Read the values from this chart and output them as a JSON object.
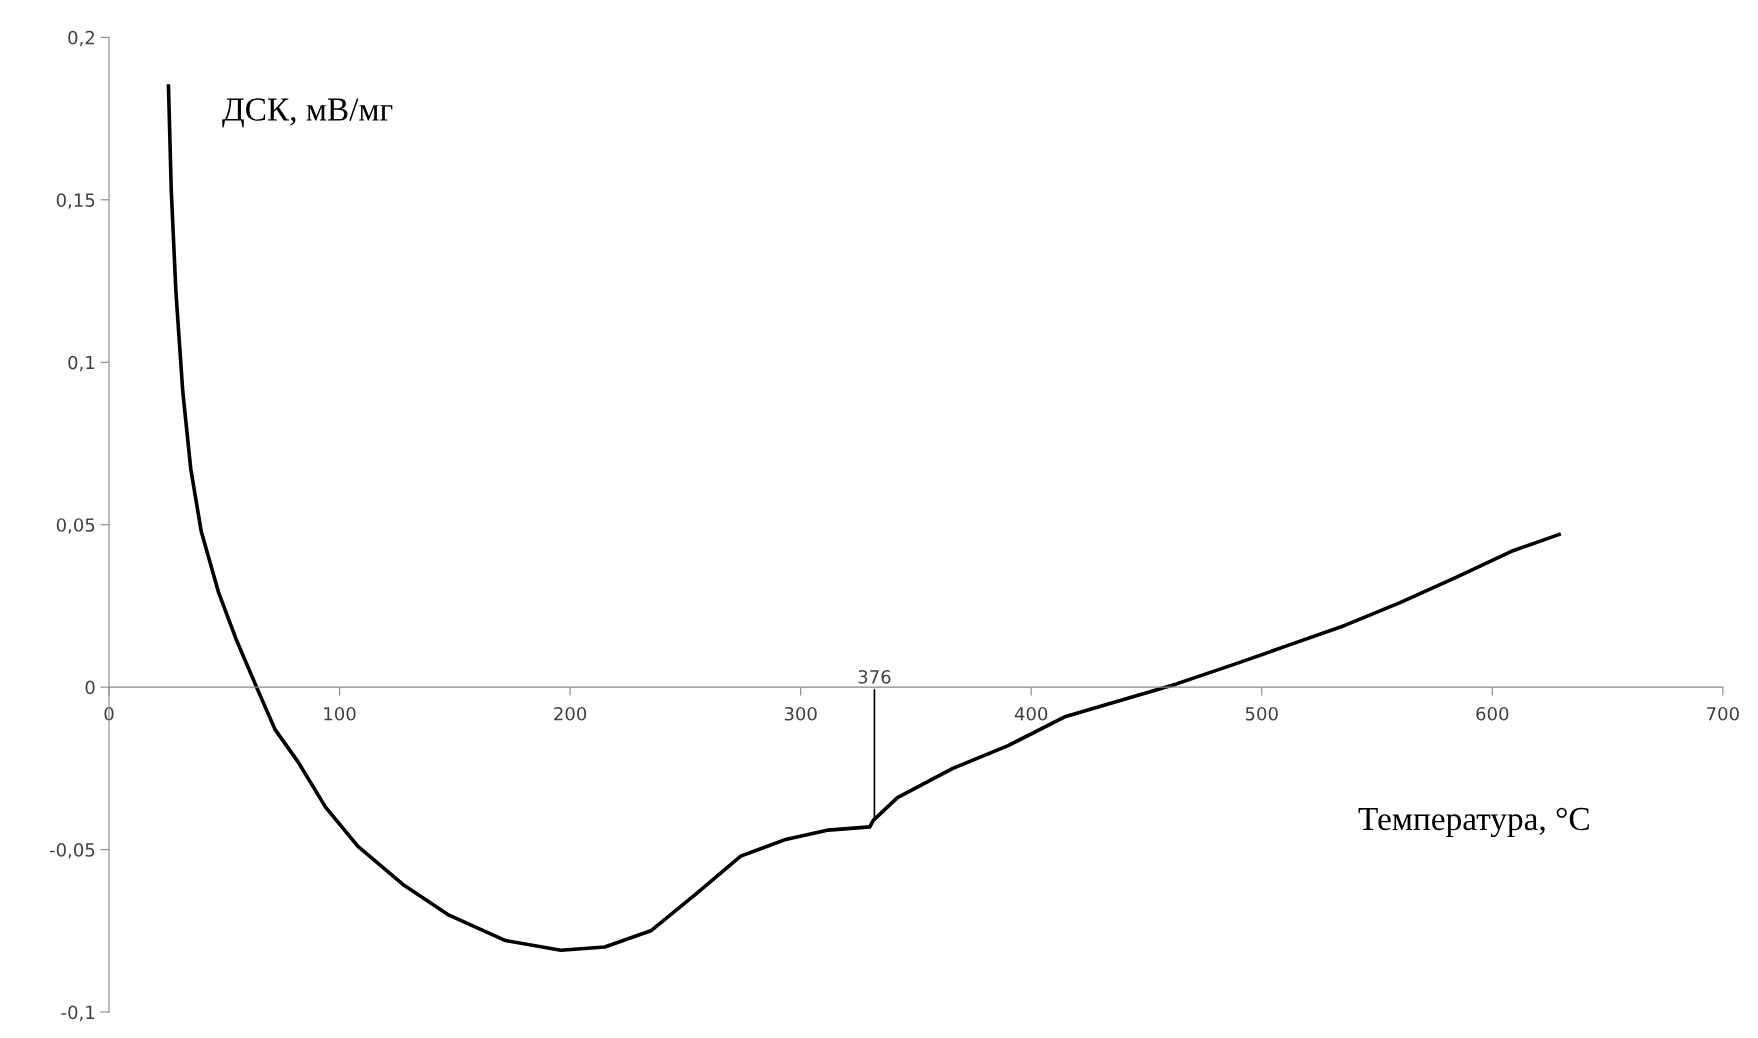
{
  "chart_data": {
    "type": "line",
    "xlabel": "Температура, °C",
    "ylabel": "ДСК, мВ/мг",
    "x": [
      25.8,
      27,
      29,
      32,
      35.5,
      40,
      47.6,
      55,
      64,
      72,
      82,
      94,
      108,
      128,
      147,
      172,
      196,
      215,
      235,
      254,
      274,
      293,
      312,
      330,
      331.5,
      342,
      366,
      390,
      415,
      439,
      463,
      488,
      512,
      536,
      560,
      585,
      609,
      629
    ],
    "series": [
      {
        "color": "#000000",
        "values": [
          0.185,
          0.153,
          0.122,
          0.091,
          0.067,
          0.048,
          0.029,
          0.015,
          0,
          -0.013,
          -0.023,
          -0.037,
          -0.049,
          -0.061,
          -0.07,
          -0.078,
          -0.081,
          -0.08,
          -0.075,
          -0.064,
          -0.052,
          -0.047,
          -0.044,
          -0.043,
          -0.041,
          -0.034,
          -0.025,
          -0.018,
          -0.009,
          -0.004,
          0.001,
          0.007,
          0.013,
          0.019,
          0.026,
          0.034,
          0.042,
          0.047
        ]
      }
    ],
    "xlim": [
      0,
      700
    ],
    "ylim": [
      -0.1,
      0.2
    ],
    "xticks": [
      0,
      100,
      200,
      300,
      400,
      500,
      600,
      700
    ],
    "yticks": [
      {
        "value": -0.1,
        "label": "-0,1"
      },
      {
        "value": -0.05,
        "label": "-0,05"
      },
      0,
      {
        "value": 0.05,
        "label": "0,05"
      },
      {
        "value": 0.1,
        "label": "0,1"
      },
      {
        "value": 0.15,
        "label": "0,15"
      },
      {
        "value": 0.2,
        "label": "0,2"
      }
    ],
    "annotations": [
      {
        "text": "376",
        "x": 332,
        "y": -0.041
      }
    ],
    "grid": false,
    "legend": false,
    "marker": "none",
    "line_style": "solid"
  }
}
